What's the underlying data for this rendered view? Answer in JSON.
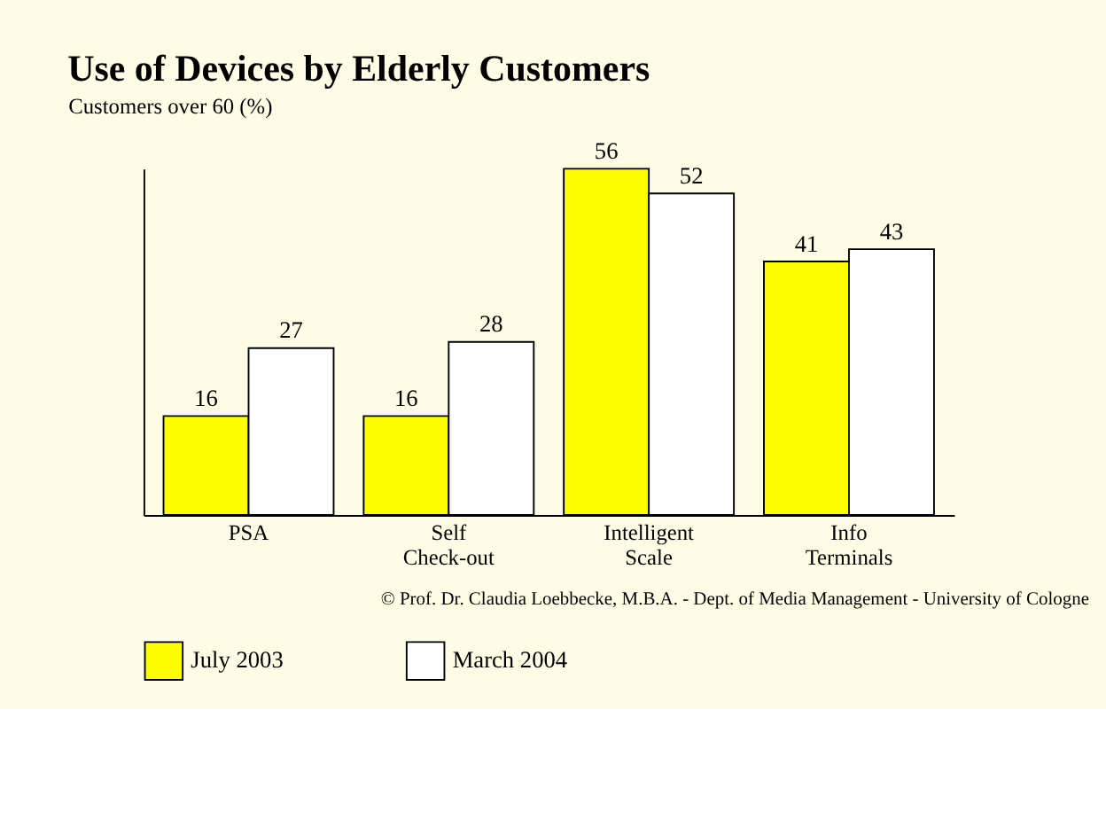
{
  "chart_data": {
    "type": "bar",
    "title": "Use of Devices by Elderly Customers",
    "ylabel": "Customers over 60 (%)",
    "categories": [
      "PSA",
      "Self Check-out",
      "Intelligent Scale",
      "Info Terminals"
    ],
    "series": [
      {
        "name": "July 2003",
        "color": "#ffff00",
        "values": [
          16,
          16,
          56,
          41
        ]
      },
      {
        "name": "March 2004",
        "color": "#ffffff",
        "values": [
          27,
          28,
          52,
          43
        ]
      }
    ],
    "data_labels": true,
    "grid": false,
    "legend": "bottom",
    "annotations": [
      "© Prof. Dr. Claudia Loebbecke, M.B.A. - Dept. of Media Management - University of Cologne"
    ]
  }
}
